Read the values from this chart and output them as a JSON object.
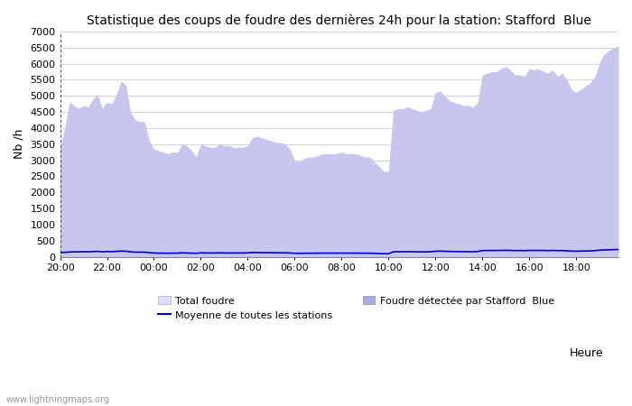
{
  "title": "Statistique des coups de foudre des dernières 24h pour la station: Stafford  Blue",
  "ylabel": "Nb /h",
  "xlabel_right": "Heure",
  "watermark": "www.lightningmaps.org",
  "ylim": [
    0,
    7000
  ],
  "yticks": [
    0,
    500,
    1000,
    1500,
    2000,
    2500,
    3000,
    3500,
    4000,
    4500,
    5000,
    5500,
    6000,
    6500,
    7000
  ],
  "xtick_labels": [
    "20:00",
    "22:00",
    "00:00",
    "02:00",
    "04:00",
    "06:00",
    "08:00",
    "10:00",
    "12:00",
    "14:00",
    "16:00",
    "18:00"
  ],
  "color_total": "#dedeff",
  "color_detected": "#aaaadd",
  "color_moyenne": "#0000cc",
  "legend_labels": [
    "Total foudre",
    "Foudre détectée par Stafford  Blue",
    "Moyenne de toutes les stations"
  ],
  "total_foudre": [
    3400,
    4000,
    4800,
    4700,
    4600,
    4700,
    4650,
    4900,
    5050,
    4600,
    4800,
    4750,
    5050,
    5450,
    5350,
    4500,
    4250,
    4200,
    4200,
    3600,
    3350,
    3300,
    3250,
    3200,
    3250,
    3250,
    3500,
    3450,
    3300,
    3100,
    3500,
    3450,
    3400,
    3400,
    3500,
    3450,
    3450,
    3400,
    3400,
    3400,
    3450,
    3700,
    3750,
    3700,
    3650,
    3600,
    3550,
    3550,
    3500,
    3350,
    3000,
    2950,
    3050,
    3100,
    3100,
    3150,
    3200,
    3200,
    3200,
    3200,
    3250,
    3200,
    3200,
    3200,
    3150,
    3100,
    3100,
    2950,
    2800,
    2650,
    2650,
    4550,
    4600,
    4600,
    4650,
    4600,
    4550,
    4500,
    4550,
    4600,
    5100,
    5150,
    5000,
    4850,
    4800,
    4750,
    4700,
    4700,
    4650,
    4800,
    5650,
    5700,
    5750,
    5750,
    5850,
    5900,
    5800,
    5650,
    5650,
    5600,
    5850,
    5800,
    5850,
    5750,
    5700,
    5800,
    5600,
    5700,
    5500,
    5200,
    5100,
    5200,
    5300,
    5400,
    5600,
    6050,
    6300,
    6400,
    6500,
    6550
  ],
  "detected": [
    3400,
    4000,
    4800,
    4700,
    4600,
    4700,
    4650,
    4900,
    5050,
    4600,
    4800,
    4750,
    5050,
    5450,
    5350,
    4500,
    4250,
    4200,
    4200,
    3600,
    3350,
    3300,
    3250,
    3200,
    3250,
    3250,
    3500,
    3450,
    3300,
    3100,
    3500,
    3450,
    3400,
    3400,
    3500,
    3450,
    3450,
    3400,
    3400,
    3400,
    3450,
    3700,
    3750,
    3700,
    3650,
    3600,
    3550,
    3550,
    3500,
    3350,
    3000,
    2950,
    3050,
    3100,
    3100,
    3150,
    3200,
    3200,
    3200,
    3200,
    3250,
    3200,
    3200,
    3200,
    3150,
    3100,
    3100,
    2950,
    2800,
    2650,
    2650,
    4550,
    4600,
    4600,
    4650,
    4600,
    4550,
    4500,
    4550,
    4600,
    5100,
    5150,
    5000,
    4850,
    4800,
    4750,
    4700,
    4700,
    4650,
    4800,
    5650,
    5700,
    5750,
    5750,
    5850,
    5900,
    5800,
    5650,
    5650,
    5600,
    5850,
    5800,
    5850,
    5750,
    5700,
    5800,
    5600,
    5700,
    5500,
    5200,
    5100,
    5200,
    5300,
    5400,
    5600,
    6050,
    6300,
    6400,
    6500,
    6550
  ],
  "moyenne": [
    130,
    140,
    150,
    155,
    155,
    160,
    155,
    165,
    170,
    155,
    165,
    160,
    170,
    180,
    175,
    155,
    145,
    145,
    145,
    130,
    120,
    115,
    115,
    110,
    115,
    115,
    125,
    120,
    115,
    110,
    125,
    120,
    120,
    120,
    125,
    120,
    120,
    120,
    120,
    120,
    125,
    135,
    135,
    130,
    130,
    130,
    125,
    125,
    125,
    120,
    110,
    108,
    110,
    112,
    112,
    115,
    115,
    115,
    115,
    115,
    118,
    115,
    115,
    115,
    113,
    112,
    112,
    108,
    102,
    97,
    97,
    155,
    158,
    158,
    160,
    157,
    155,
    153,
    155,
    158,
    175,
    178,
    173,
    168,
    165,
    163,
    160,
    160,
    158,
    165,
    195,
    196,
    198,
    198,
    200,
    202,
    200,
    195,
    195,
    192,
    200,
    200,
    200,
    198,
    195,
    200,
    193,
    196,
    188,
    178,
    175,
    180,
    182,
    185,
    193,
    208,
    215,
    220,
    225,
    228
  ],
  "figsize": [
    7.0,
    4.5
  ],
  "dpi": 100
}
